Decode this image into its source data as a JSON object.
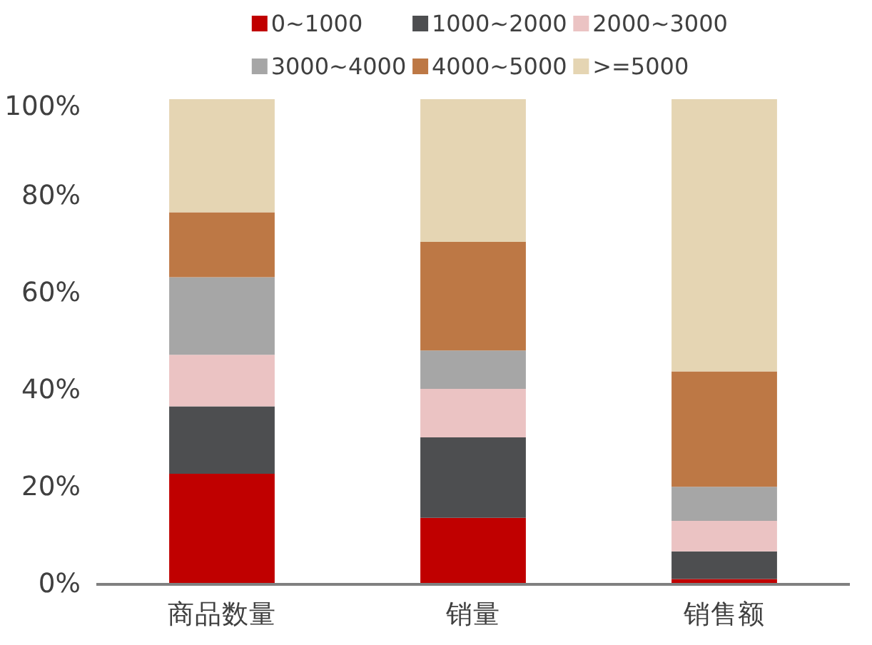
{
  "chart_data": {
    "type": "bar",
    "stacked": true,
    "categories": [
      "商品数量",
      "销量",
      "销售额"
    ],
    "series": [
      {
        "name": "0~1000",
        "color": "#c00000",
        "values": [
          22.8,
          13.7,
          1.1
        ]
      },
      {
        "name": "1000~2000",
        "color": "#4d4e50",
        "values": [
          13.9,
          16.6,
          5.7
        ]
      },
      {
        "name": "2000~3000",
        "color": "#ebc3c3",
        "values": [
          10.6,
          10.0,
          6.3
        ]
      },
      {
        "name": "3000~4000",
        "color": "#a6a6a6",
        "values": [
          16.0,
          7.9,
          7.0
        ]
      },
      {
        "name": "4000~5000",
        "color": "#bd7845",
        "values": [
          13.4,
          22.4,
          23.8
        ]
      },
      {
        "name": ">=5000",
        "color": "#e5d5b3",
        "values": [
          23.3,
          29.4,
          56.1
        ]
      }
    ],
    "ylim": [
      0,
      100
    ],
    "yticks": [
      {
        "value": 0,
        "label": "0%"
      },
      {
        "value": 20,
        "label": "20%"
      },
      {
        "value": 40,
        "label": "40%"
      },
      {
        "value": 60,
        "label": "60%"
      },
      {
        "value": 80,
        "label": "80%"
      },
      {
        "value": 100,
        "label": "100%"
      }
    ],
    "grid": false,
    "legend": "top"
  }
}
